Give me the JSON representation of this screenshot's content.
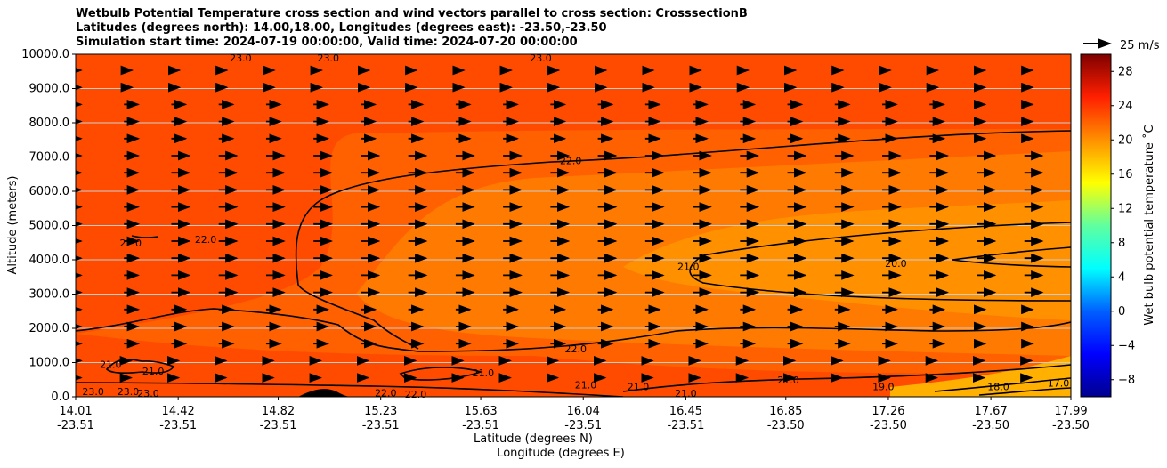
{
  "chart_data": {
    "type": "contourf",
    "title_lines": [
      "Wetbulb Potential Temperature cross section and wind vectors parallel to cross section: CrosssectionB",
      "Latitudes (degrees north): 14.00,18.00, Longitudes (degrees east): -23.50,-23.50",
      "Simulation start time: 2024-07-19 00:00:00, Valid time: 2024-07-20 00:00:00"
    ],
    "ylabel": "Altitude (meters)",
    "xlabel_lat": "Latitude (degrees N)",
    "xlabel_lon": "Longitude (degrees E)",
    "ylim": [
      0,
      10000
    ],
    "y_ticks": [
      0,
      1000,
      2000,
      3000,
      4000,
      5000,
      6000,
      7000,
      8000,
      9000,
      10000
    ],
    "y_tick_labels": [
      "0.0",
      "1000.0",
      "2000.0",
      "3000.0",
      "4000.0",
      "5000.0",
      "6000.0",
      "7000.0",
      "8000.0",
      "9000.0",
      "10000.0"
    ],
    "x_lat_range": [
      14.01,
      17.99
    ],
    "x_ticks": [
      {
        "lat": "14.01",
        "lon": "-23.51"
      },
      {
        "lat": "14.42",
        "lon": "-23.51"
      },
      {
        "lat": "14.82",
        "lon": "-23.51"
      },
      {
        "lat": "15.23",
        "lon": "-23.51"
      },
      {
        "lat": "15.63",
        "lon": "-23.51"
      },
      {
        "lat": "16.04",
        "lon": "-23.51"
      },
      {
        "lat": "16.45",
        "lon": "-23.51"
      },
      {
        "lat": "16.85",
        "lon": "-23.50"
      },
      {
        "lat": "17.26",
        "lon": "-23.50"
      },
      {
        "lat": "17.67",
        "lon": "-23.50"
      },
      {
        "lat": "17.99",
        "lon": "-23.50"
      }
    ],
    "colorbar": {
      "label": "Wet bulb potential temperature ˚C",
      "range": [
        -10,
        30
      ],
      "ticks": [
        -8,
        -4,
        0,
        4,
        8,
        12,
        16,
        20,
        24,
        28
      ],
      "tick_labels": [
        "−8",
        "−4",
        "0",
        "4",
        "8",
        "12",
        "16",
        "20",
        "24",
        "28"
      ]
    },
    "quiver_key": {
      "label": "25 m/s",
      "speed": 25
    },
    "contour_labels": [
      {
        "text": "23.0",
        "lat": 14.67,
        "alt": 9900
      },
      {
        "text": "23.0",
        "lat": 15.02,
        "alt": 9900
      },
      {
        "text": "23.0",
        "lat": 15.87,
        "alt": 9900
      },
      {
        "text": "22.0",
        "lat": 15.99,
        "alt": 6900
      },
      {
        "text": "22.0",
        "lat": 14.23,
        "alt": 4500
      },
      {
        "text": "22.0",
        "lat": 14.53,
        "alt": 4600
      },
      {
        "text": "21.0",
        "lat": 16.46,
        "alt": 3800
      },
      {
        "text": "20.0",
        "lat": 17.29,
        "alt": 3900
      },
      {
        "text": "22.0",
        "lat": 16.01,
        "alt": 1400
      },
      {
        "text": "21.0",
        "lat": 14.15,
        "alt": 950
      },
      {
        "text": "21.0",
        "lat": 14.32,
        "alt": 750
      },
      {
        "text": "21.0",
        "lat": 15.64,
        "alt": 700
      },
      {
        "text": "21.0",
        "lat": 16.05,
        "alt": 350
      },
      {
        "text": "21.0",
        "lat": 16.26,
        "alt": 300
      },
      {
        "text": "21.0",
        "lat": 16.86,
        "alt": 500
      },
      {
        "text": "21.0",
        "lat": 16.45,
        "alt": 100
      },
      {
        "text": "23.0",
        "lat": 14.08,
        "alt": 150
      },
      {
        "text": "23.0",
        "lat": 14.22,
        "alt": 150
      },
      {
        "text": "23.0",
        "lat": 14.3,
        "alt": 100
      },
      {
        "text": "22.0",
        "lat": 15.25,
        "alt": 120
      },
      {
        "text": "22.0",
        "lat": 15.37,
        "alt": 80
      },
      {
        "text": "19.0",
        "lat": 17.24,
        "alt": 300
      },
      {
        "text": "18.0",
        "lat": 17.7,
        "alt": 300
      },
      {
        "text": "17.0",
        "lat": 17.94,
        "alt": 400
      }
    ]
  },
  "colors": {
    "background_field": "#ff4b00",
    "band_warm": "#ff6000",
    "band_mid": "#ff7a00",
    "band_core": "#ff9000",
    "band_cool": "#ffb000",
    "contour": "#000000",
    "grid": "#cccccc"
  }
}
